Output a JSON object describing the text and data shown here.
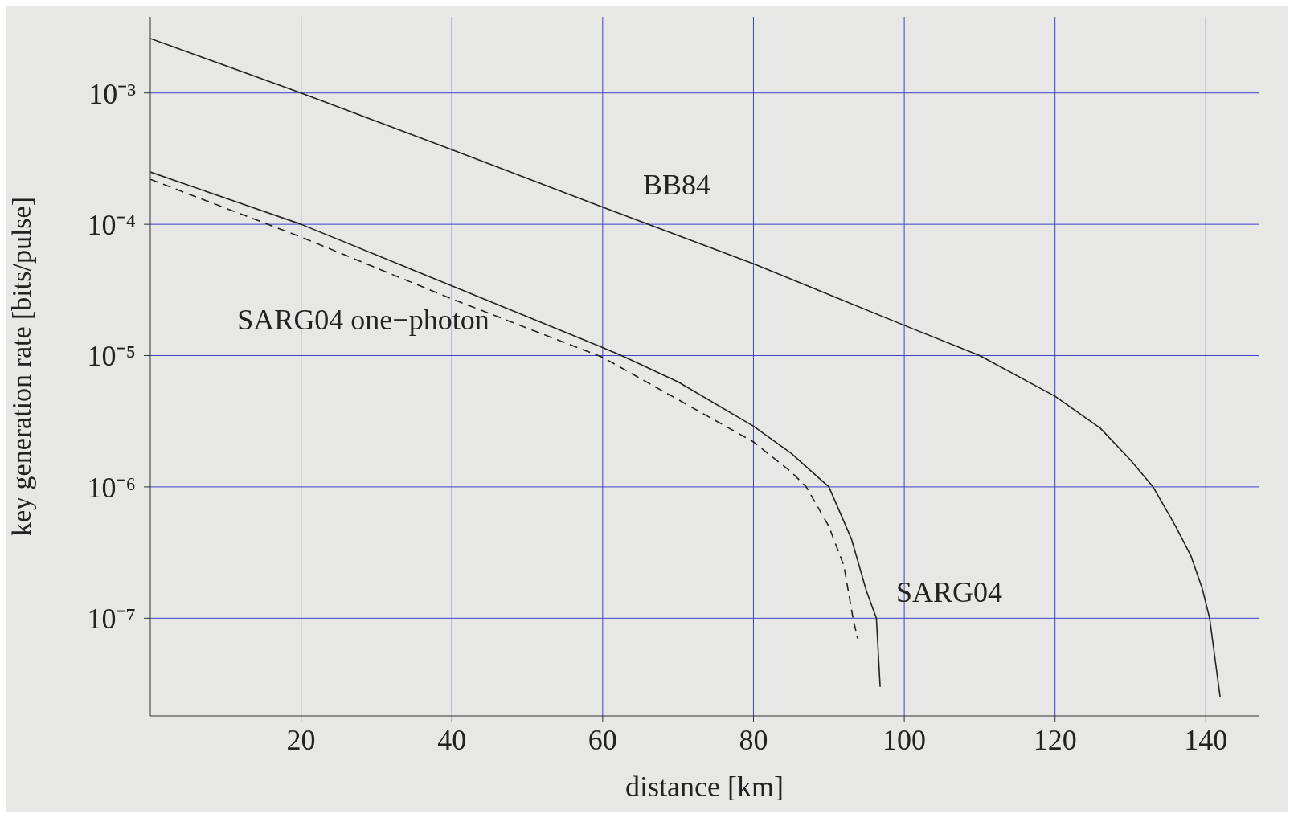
{
  "chart_data": {
    "type": "line",
    "xlabel": "distance [km]",
    "ylabel": "key generation rate [bits/pulse]",
    "xlim": [
      0,
      147
    ],
    "xticks": [
      20,
      40,
      60,
      80,
      100,
      120,
      140
    ],
    "ylim": [
      1.8e-08,
      0.0038
    ],
    "log": "y",
    "yticks": [
      {
        "value": 1e-07,
        "label": "10⁻⁷"
      },
      {
        "value": 1e-06,
        "label": "10⁻⁶"
      },
      {
        "value": 1e-05,
        "label": "10⁻⁵"
      },
      {
        "value": 0.0001,
        "label": "10⁻⁴"
      },
      {
        "value": 0.001,
        "label": "10⁻³"
      }
    ],
    "grid": true,
    "marker": "none",
    "series": [
      {
        "color": "#222222",
        "line_style": "solid",
        "x": [
          0,
          20,
          40,
          60,
          80,
          100,
          110,
          120,
          126,
          130,
          133,
          136,
          138,
          139.5,
          140.5,
          141.2,
          141.9
        ],
        "values": [
          0.0026,
          0.001,
          0.00037,
          0.000135,
          5e-05,
          1.7e-05,
          1e-05,
          4.9e-06,
          2.8e-06,
          1.6e-06,
          1e-06,
          5e-07,
          3e-07,
          1.7e-07,
          1e-07,
          5e-08,
          2.5e-08
        ]
      },
      {
        "color": "#222222",
        "line_style": "solid",
        "x": [
          0,
          20,
          40,
          60,
          62.5,
          70,
          80,
          85,
          90,
          93,
          95,
          96.3,
          96.8
        ],
        "values": [
          0.00025,
          0.0001,
          3.4e-05,
          1.15e-05,
          1e-05,
          6.3e-06,
          2.9e-06,
          1.8e-06,
          1e-06,
          4e-07,
          1.6e-07,
          1e-07,
          3e-08
        ]
      },
      {
        "color": "#222222",
        "line_style": "dashed",
        "x": [
          0,
          20,
          40,
          60,
          80,
          85,
          87,
          90,
          92,
          93.2,
          93.8
        ],
        "values": [
          0.00022,
          8e-05,
          2.7e-05,
          9.7e-06,
          2.2e-06,
          1.3e-06,
          1e-06,
          5e-07,
          2.5e-07,
          1e-07,
          7e-08
        ]
      }
    ],
    "annotations": [
      "BB84",
      "SARG04",
      "SARG04 one−photon"
    ]
  }
}
